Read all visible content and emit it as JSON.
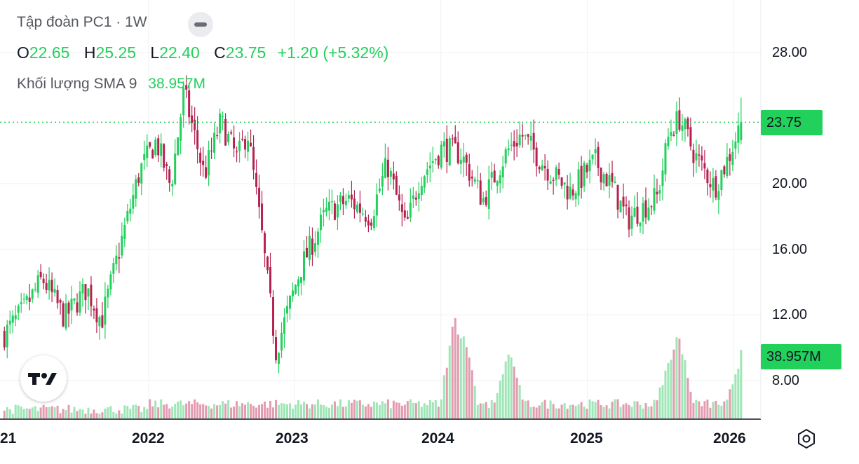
{
  "legend": {
    "title": "Tập đoàn PC1",
    "dot": "·",
    "interval": "1W",
    "open_key": "O",
    "open": "22.65",
    "high_key": "H",
    "high": "25.25",
    "low_key": "L",
    "low": "22.40",
    "close_key": "C",
    "close": "23.75",
    "change": "+1.20",
    "change_pct": "(+5.32%)",
    "volume_label": "Khối lượng SMA 9",
    "volume_value": "38.957M"
  },
  "colors": {
    "up": "#22d05c",
    "down": "#b5224f",
    "vol_up": "#9fe6b6",
    "vol_down": "#e39bb0",
    "badge": "#22d05c"
  },
  "chart_data": {
    "type": "candlestick",
    "symbol": "PC1",
    "interval": "1W",
    "y_ticks": [
      28,
      20,
      16,
      12,
      8
    ],
    "y_tick_labels": [
      "28.00",
      "20.00",
      "16.00",
      "12.00",
      "8.00"
    ],
    "x_ticks": [
      "21",
      "2022",
      "2023",
      "2024",
      "2025",
      "2026"
    ],
    "last_price": 23.75,
    "last_price_label": "23.75",
    "volume_sma_label": "38.957M",
    "ylim": [
      5.5,
      30.5
    ],
    "price_anchors": [
      [
        "2021-01-05",
        10.8
      ],
      [
        "2021-02-20",
        12.2
      ],
      [
        "2021-04-10",
        14.2
      ],
      [
        "2021-06-05",
        11.8
      ],
      [
        "2021-07-30",
        13.6
      ],
      [
        "2021-09-05",
        11.6
      ],
      [
        "2021-10-25",
        16.5
      ],
      [
        "2021-12-10",
        20.8
      ],
      [
        "2022-01-20",
        22.6
      ],
      [
        "2022-02-25",
        19.8
      ],
      [
        "2022-03-30",
        25.6
      ],
      [
        "2022-05-20",
        20.5
      ],
      [
        "2022-06-30",
        23.8
      ],
      [
        "2022-08-10",
        21.5
      ],
      [
        "2022-09-05",
        23.2
      ],
      [
        "2022-10-10",
        17.0
      ],
      [
        "2022-11-15",
        9.8
      ],
      [
        "2023-01-15",
        14.8
      ],
      [
        "2023-03-20",
        18.2
      ],
      [
        "2023-05-15",
        19.0
      ],
      [
        "2023-07-10",
        18.0
      ],
      [
        "2023-08-20",
        21.2
      ],
      [
        "2023-10-05",
        17.2
      ],
      [
        "2023-11-10",
        20.4
      ],
      [
        "2024-01-05",
        22.2
      ],
      [
        "2024-02-20",
        21.8
      ],
      [
        "2024-04-15",
        19.0
      ],
      [
        "2024-06-15",
        22.0
      ],
      [
        "2024-07-20",
        23.0
      ],
      [
        "2024-09-20",
        21.0
      ],
      [
        "2024-11-20",
        19.5
      ],
      [
        "2025-01-20",
        21.4
      ],
      [
        "2025-03-05",
        19.8
      ],
      [
        "2025-04-10",
        17.8
      ],
      [
        "2025-06-25",
        19.2
      ],
      [
        "2025-07-25",
        23.2
      ],
      [
        "2025-08-20",
        24.0
      ],
      [
        "2025-09-25",
        21.8
      ],
      [
        "2025-11-15",
        19.8
      ],
      [
        "2025-12-20",
        21.6
      ],
      [
        "2026-01-20",
        23.75
      ]
    ],
    "last_candle": {
      "open": 22.65,
      "high": 25.25,
      "low": 22.4,
      "close": 23.75
    },
    "volume_spikes": [
      [
        "2024-02-05",
        5.5
      ],
      [
        "2024-02-25",
        4.8
      ],
      [
        "2024-06-20",
        3.6
      ],
      [
        "2025-07-25",
        3.2
      ],
      [
        "2025-08-15",
        4.8
      ],
      [
        "2026-01-20",
        3.4
      ]
    ]
  }
}
